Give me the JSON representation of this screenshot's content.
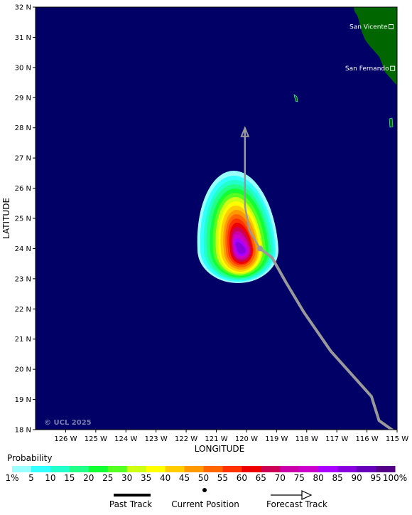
{
  "map": {
    "lat_ticks": [
      "18 N",
      "19 N",
      "20 N",
      "21 N",
      "22 N",
      "23 N",
      "24 N",
      "25 N",
      "26 N",
      "27 N",
      "28 N",
      "29 N",
      "30 N",
      "31 N",
      "32 N"
    ],
    "lon_ticks": [
      "126 W",
      "125 W",
      "124 W",
      "123 W",
      "122 W",
      "121 W",
      "120 W",
      "119 W",
      "118 W",
      "117 W",
      "116 W",
      "115 W"
    ],
    "y_axis_label": "LATITUDE",
    "x_axis_label": "LONGITUDE",
    "copyright": "© UCL 2025",
    "ocean_color": "#000066",
    "land_color": "#006600",
    "track_color": "#999999",
    "cities": [
      {
        "name": "San Vicente",
        "lon": -115.2,
        "lat": 31.35
      },
      {
        "name": "San Fernando",
        "lon": -115.15,
        "lat": 29.97
      }
    ],
    "past_track": [
      {
        "lon": -114.75,
        "lat": 17.7
      },
      {
        "lon": -115.6,
        "lat": 18.3
      },
      {
        "lon": -115.85,
        "lat": 19.1
      },
      {
        "lon": -117.2,
        "lat": 20.6
      },
      {
        "lon": -118.1,
        "lat": 21.9
      },
      {
        "lon": -118.7,
        "lat": 22.9
      },
      {
        "lon": -119.15,
        "lat": 23.7
      },
      {
        "lon": -119.55,
        "lat": 24.0
      }
    ],
    "current_position": {
      "lon": -119.55,
      "lat": 24.0
    },
    "forecast_track": [
      {
        "lon": -119.55,
        "lat": 24.0
      },
      {
        "lon": -119.9,
        "lat": 24.6
      },
      {
        "lon": -120.05,
        "lat": 25.4
      },
      {
        "lon": -120.05,
        "lat": 28.0
      }
    ]
  },
  "legend": {
    "title": "Probability",
    "scale_labels": [
      "1%",
      "5",
      "10",
      "15",
      "20",
      "25",
      "30",
      "35",
      "40",
      "45",
      "50",
      "55",
      "60",
      "65",
      "70",
      "75",
      "80",
      "85",
      "90",
      "95",
      "100%"
    ],
    "colors": [
      "#99ffff",
      "#33ffff",
      "#22ffcc",
      "#22ff88",
      "#11ff33",
      "#55ff22",
      "#ccff11",
      "#ffff00",
      "#ffcc00",
      "#ff9900",
      "#ff6600",
      "#ff3300",
      "#ee0000",
      "#cc0055",
      "#cc00aa",
      "#cc00cc",
      "#aa00ff",
      "#8800dd",
      "#6600bb",
      "#550088"
    ],
    "key_past_track": "Past Track",
    "key_current_position": "Current Position",
    "key_forecast_track": "Forecast Track"
  }
}
